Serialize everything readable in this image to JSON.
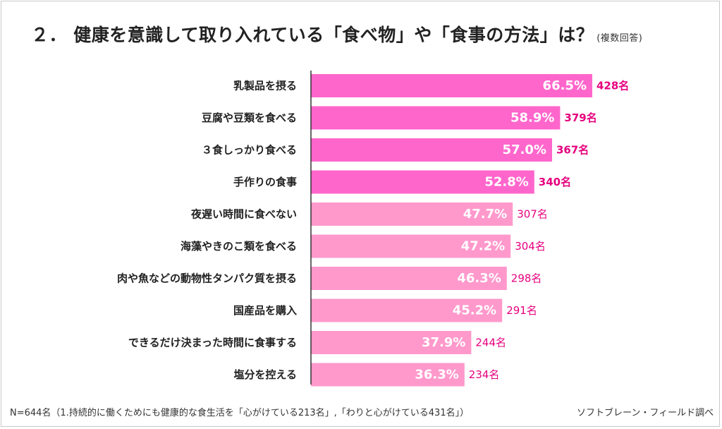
{
  "title": {
    "main": "２． 健康を意識して取り入れている「食べ物」や「食事の方法」は？",
    "sub": "(複数回答)"
  },
  "colors": {
    "top_bar": "#ff66cc",
    "other_bar": "#ff99cc",
    "top_count_text": "#e6007e",
    "other_count_text": "#e6007e",
    "axis": "#333333",
    "percent_text": "#ffffff"
  },
  "chart_data": {
    "type": "bar",
    "orientation": "horizontal",
    "categories": [
      "乳製品を摂る",
      "豆腐や豆類を食べる",
      "３食しっかり食べる",
      "手作りの食事",
      "夜遅い時間に食べない",
      "海藻やきのこ類を食べる",
      "肉や魚などの動物性タンパク質を摂る",
      "国産品を購入",
      "できるだけ決まった時間に食事する",
      "塩分を控える"
    ],
    "values": [
      66.5,
      58.9,
      57.0,
      52.8,
      47.7,
      47.2,
      46.3,
      45.2,
      37.9,
      36.3
    ],
    "percent_labels": [
      "66.5%",
      "58.9%",
      "57.0%",
      "52.8%",
      "47.7%",
      "47.2%",
      "46.3%",
      "45.2%",
      "37.9%",
      "36.3%"
    ],
    "count_labels": [
      "428名",
      "379名",
      "367名",
      "340名",
      "307名",
      "304名",
      "298名",
      "291名",
      "244名",
      "234名"
    ],
    "highlighted_count": 4,
    "xlim": [
      0,
      100
    ]
  },
  "footer": {
    "note": "N=644名（1.持続的に働くためにも健康的な食生活を「心がけている213名」,「わりと心がけている431名」）",
    "source": "ソフトブレーン・フィールド調べ"
  }
}
